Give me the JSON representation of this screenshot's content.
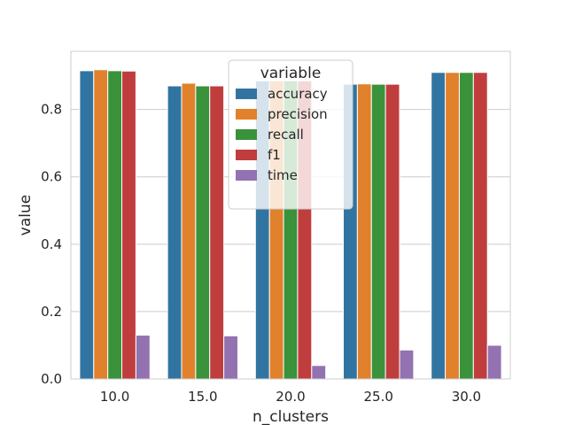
{
  "chart_data": {
    "type": "bar",
    "xlabel": "n_clusters",
    "ylabel": "value",
    "categories": [
      "10.0",
      "15.0",
      "20.0",
      "25.0",
      "30.0"
    ],
    "ylim": [
      0,
      0.9725
    ],
    "yticks": [
      "0.0",
      "0.2",
      "0.4",
      "0.6",
      "0.8"
    ],
    "grid": true,
    "legend": {
      "title": "variable",
      "placement": "upper-center"
    },
    "series": [
      {
        "name": "accuracy",
        "color": "#3274a1",
        "values": [
          0.915,
          0.87,
          0.885,
          0.875,
          0.91
        ]
      },
      {
        "name": "precision",
        "color": "#e1812c",
        "values": [
          0.918,
          0.878,
          0.885,
          0.876,
          0.91
        ]
      },
      {
        "name": "recall",
        "color": "#3a923a",
        "values": [
          0.915,
          0.87,
          0.885,
          0.875,
          0.91
        ]
      },
      {
        "name": "f1",
        "color": "#c03d3e",
        "values": [
          0.914,
          0.87,
          0.885,
          0.875,
          0.91
        ]
      },
      {
        "name": "time",
        "color": "#9372b2",
        "values": [
          0.13,
          0.128,
          0.04,
          0.086,
          0.1
        ]
      }
    ]
  }
}
